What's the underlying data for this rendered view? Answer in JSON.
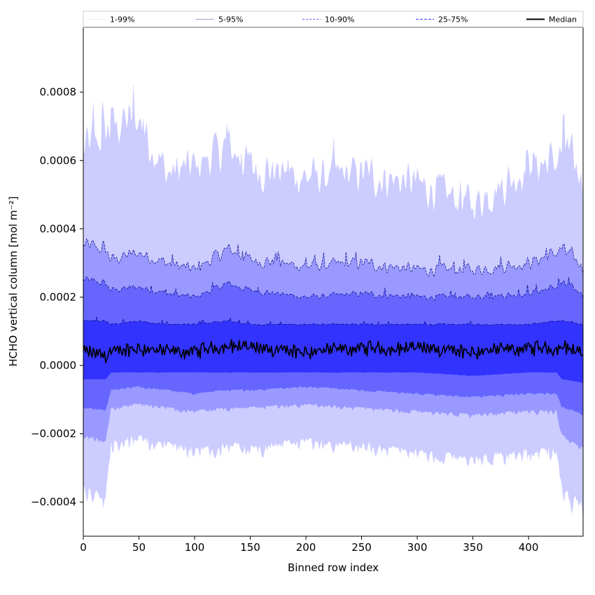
{
  "chart_data": {
    "type": "area",
    "xlabel": "Binned row index",
    "ylabel": "HCHO vertical column [mol m⁻²]",
    "xlim": [
      0,
      449
    ],
    "ylim": [
      -0.0005,
      0.00099
    ],
    "x_ticks": [
      0,
      50,
      100,
      150,
      200,
      250,
      300,
      350,
      400
    ],
    "x_tick_labels": [
      "0",
      "50",
      "100",
      "150",
      "200",
      "250",
      "300",
      "350",
      "400"
    ],
    "y_ticks": [
      -0.0004,
      -0.0002,
      0.0,
      0.0002,
      0.0004,
      0.0006,
      0.0008
    ],
    "y_tick_labels": [
      "−0.0004",
      "−0.0002",
      "0.0000",
      "0.0002",
      "0.0004",
      "0.0006",
      "0.0008"
    ],
    "legend_position": "top",
    "grid": false,
    "x_anchors": [
      0,
      20,
      25,
      50,
      75,
      100,
      130,
      150,
      200,
      250,
      300,
      350,
      400,
      425,
      430,
      449
    ],
    "series": [
      {
        "name": "1-99%",
        "color": "#ccccff",
        "upper": [
          0.00062,
          0.00068,
          0.0007,
          0.00072,
          0.00056,
          0.00058,
          0.00064,
          0.00058,
          0.00055,
          0.00056,
          0.00053,
          0.00047,
          0.00058,
          0.0006,
          0.00062,
          0.00055
        ],
        "lower": [
          -0.00035,
          -0.00037,
          -0.00022,
          -0.0002,
          -0.00022,
          -0.00024,
          -0.00022,
          -0.00023,
          -0.00021,
          -0.00022,
          -0.00024,
          -0.00026,
          -0.00024,
          -0.00024,
          -0.00035,
          -0.0004
        ]
      },
      {
        "name": "5-95%",
        "color": "#9999ff",
        "upper": [
          0.00035,
          0.00034,
          0.00031,
          0.00033,
          0.0003,
          0.00028,
          0.00034,
          0.00031,
          0.00029,
          0.0003,
          0.00028,
          0.00028,
          0.0003,
          0.00033,
          0.00034,
          0.00029
        ],
        "lower": [
          -0.0002,
          -0.00022,
          -0.00012,
          -0.00011,
          -0.00012,
          -0.00013,
          -0.00012,
          -0.00012,
          -0.00011,
          -0.00012,
          -0.00013,
          -0.00014,
          -0.00013,
          -0.00013,
          -0.0002,
          -0.00024
        ]
      },
      {
        "name": "10-90%",
        "color": "#6666ff",
        "upper": [
          0.00025,
          0.00024,
          0.00022,
          0.00023,
          0.00021,
          0.0002,
          0.00024,
          0.00022,
          0.0002,
          0.00021,
          0.0002,
          0.0002,
          0.00021,
          0.00023,
          0.00024,
          0.00021
        ],
        "lower": [
          -0.00012,
          -0.00013,
          -7e-05,
          -6e-05,
          -7e-05,
          -8e-05,
          -7e-05,
          -7e-05,
          -6e-05,
          -7e-05,
          -8e-05,
          -9e-05,
          -8e-05,
          -8e-05,
          -0.00012,
          -0.00014
        ]
      },
      {
        "name": "25-75%",
        "color": "#3333ff",
        "upper": [
          0.00013,
          0.00013,
          0.00012,
          0.00013,
          0.00012,
          0.00012,
          0.00013,
          0.00012,
          0.00012,
          0.00012,
          0.00012,
          0.00012,
          0.00012,
          0.00013,
          0.00013,
          0.00012
        ],
        "lower": [
          -4e-05,
          -4e-05,
          -2e-05,
          -2e-05,
          -2e-05,
          -2e-05,
          -2e-05,
          -2e-05,
          -2e-05,
          -2e-05,
          -2e-05,
          -3e-05,
          -2e-05,
          -2e-05,
          -4e-05,
          -5e-05
        ]
      },
      {
        "name": "Median",
        "color": "#000000",
        "values": [
          4e-05,
          3e-05,
          4e-05,
          5e-05,
          4e-05,
          4e-05,
          6e-05,
          5e-05,
          4e-05,
          5e-05,
          5e-05,
          4e-05,
          5e-05,
          5e-05,
          6e-05,
          3e-05
        ]
      }
    ]
  }
}
